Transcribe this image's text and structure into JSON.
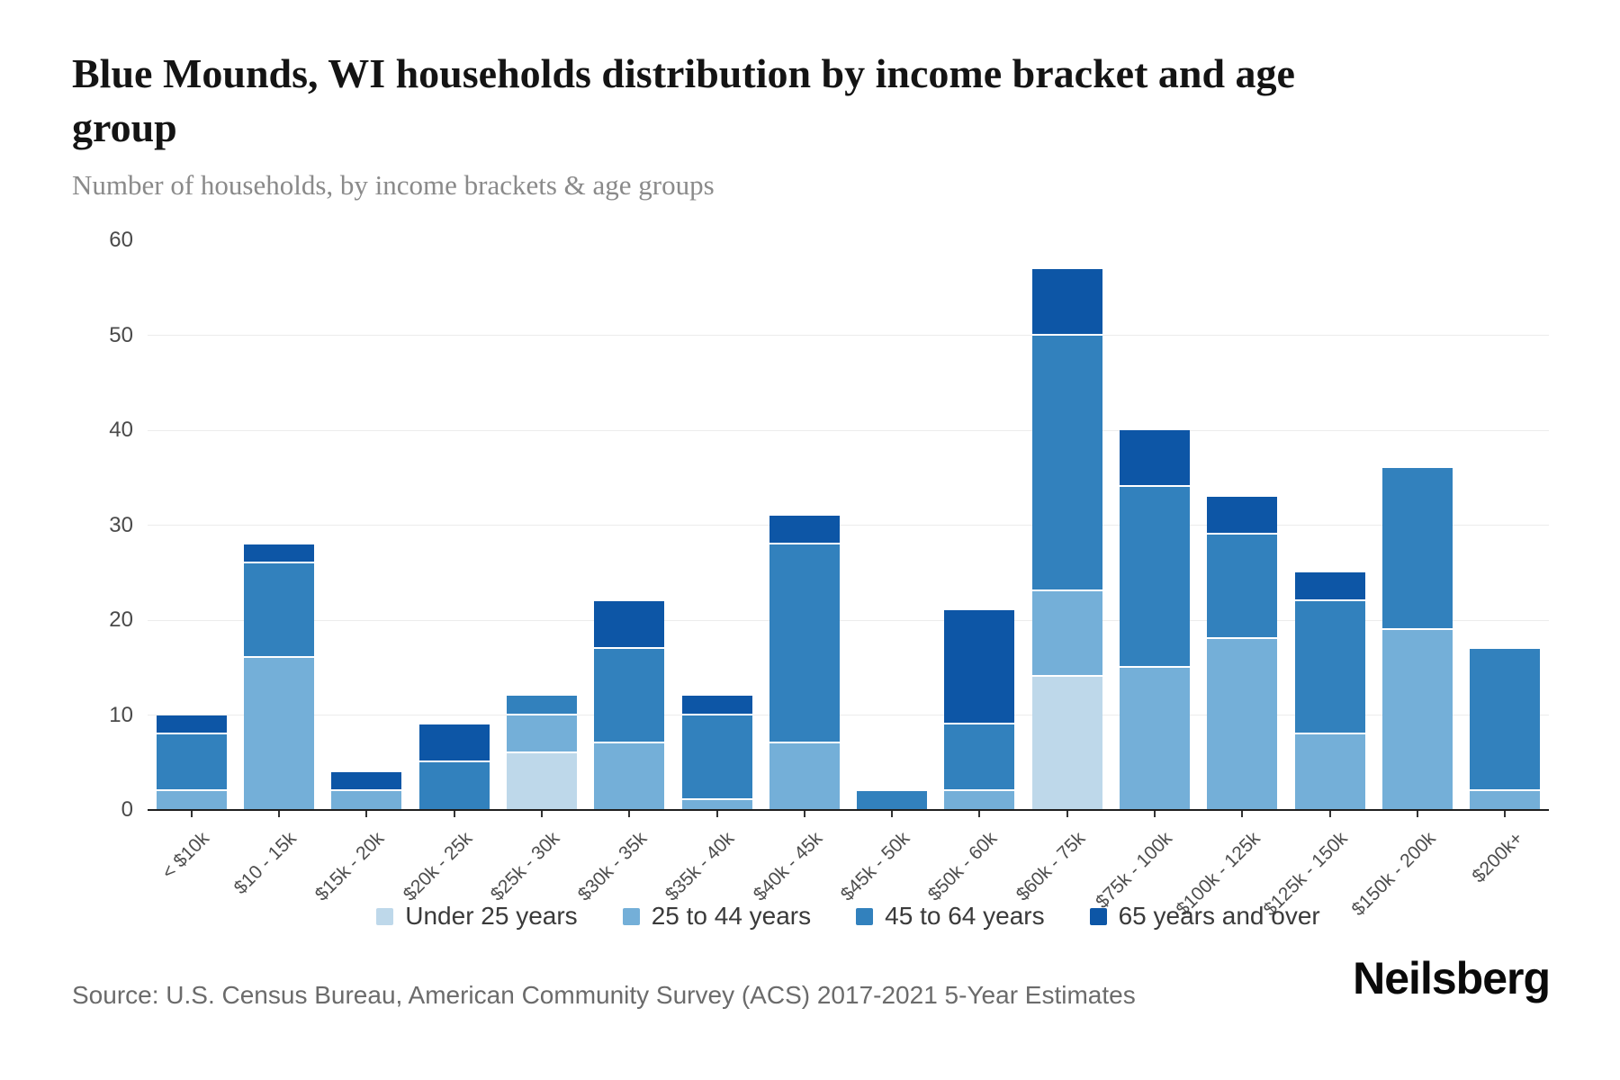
{
  "header": {
    "title": "Blue Mounds, WI households distribution by income bracket and age group",
    "subtitle": "Number of households, by income brackets & age groups"
  },
  "footer": {
    "source": "Source: U.S. Census Bureau, American Community Survey (ACS) 2017-2021 5-Year Estimates",
    "logo": "Neilsberg"
  },
  "colors": {
    "under_25": "#bed8ea",
    "age_25_44": "#74afd8",
    "age_45_64": "#3281bd",
    "age_65_over": "#0d56a6",
    "gridline": "#ececec",
    "axis": "#1f1f1f"
  },
  "chart_data": {
    "type": "bar",
    "stacked": true,
    "title": "Blue Mounds, WI households distribution by income bracket and age group",
    "subtitle": "Number of households, by income brackets & age groups",
    "xlabel": "",
    "ylabel": "Number of households",
    "ylim": [
      0,
      60
    ],
    "yticks": [
      0,
      10,
      20,
      30,
      40,
      50,
      60
    ],
    "grid": "horizontal",
    "legend_position": "bottom",
    "categories": [
      "< $10k",
      "$10 - 15k",
      "$15k - 20k",
      "$20k - 25k",
      "$25k - 30k",
      "$30k - 35k",
      "$35k - 40k",
      "$40k - 45k",
      "$45k - 50k",
      "$50k - 60k",
      "$60k - 75k",
      "$75k - 100k",
      "$100k - 125k",
      "$125k - 150k",
      "$150k - 200k",
      "$200k+"
    ],
    "series": [
      {
        "name": "Under 25 years",
        "color": "#bed8ea",
        "values": [
          0,
          0,
          0,
          0,
          6,
          0,
          0,
          0,
          0,
          0,
          14,
          0,
          0,
          0,
          0,
          0
        ]
      },
      {
        "name": "25 to 44 years",
        "color": "#74afd8",
        "values": [
          2,
          16,
          2,
          0,
          4,
          7,
          1,
          7,
          0,
          2,
          9,
          15,
          18,
          8,
          19,
          2
        ]
      },
      {
        "name": "45 to 64 years",
        "color": "#3281bd",
        "values": [
          6,
          10,
          0,
          5,
          2,
          10,
          9,
          21,
          2,
          7,
          27,
          19,
          11,
          14,
          17,
          15
        ]
      },
      {
        "name": "65 years and over",
        "color": "#0d56a6",
        "values": [
          2,
          2,
          2,
          4,
          0,
          5,
          2,
          3,
          0,
          12,
          7,
          6,
          4,
          3,
          0,
          0
        ]
      }
    ],
    "totals": [
      10,
      28,
      4,
      9,
      12,
      22,
      12,
      31,
      2,
      21,
      57,
      40,
      33,
      25,
      36,
      17
    ]
  }
}
